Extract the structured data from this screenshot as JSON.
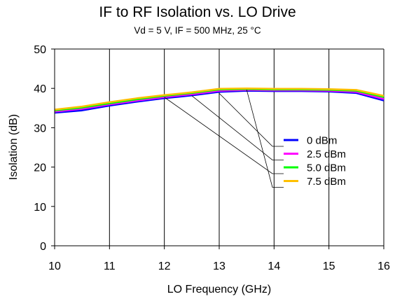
{
  "chart_data": {
    "type": "line",
    "title": "IF to RF Isolation vs. LO Drive",
    "subtitle": "Vd = 5 V, IF = 500 MHz, 25 °C",
    "xlabel": "LO Frequency (GHz)",
    "ylabel": "Isolation (dB)",
    "xlim": [
      10,
      16
    ],
    "ylim": [
      0,
      50
    ],
    "xticks": [
      10,
      11,
      12,
      13,
      14,
      15,
      16
    ],
    "yticks": [
      0,
      10,
      20,
      30,
      40,
      50
    ],
    "grid": "vertical",
    "legend_position": "center-right",
    "x": [
      10,
      10.5,
      11,
      11.5,
      12,
      12.5,
      13,
      13.5,
      14,
      14.5,
      15,
      15.5,
      16
    ],
    "series": [
      {
        "name": "0 dBm",
        "color": "#0000ff",
        "values": [
          33.8,
          34.4,
          35.6,
          36.6,
          37.5,
          38.2,
          39.1,
          39.4,
          39.3,
          39.3,
          39.2,
          38.8,
          36.9
        ]
      },
      {
        "name": "2.5 dBm",
        "color": "#ff00ff",
        "values": [
          34.1,
          34.8,
          35.9,
          36.9,
          37.8,
          38.5,
          39.4,
          39.6,
          39.5,
          39.5,
          39.4,
          39.1,
          37.3
        ]
      },
      {
        "name": "5.0 dBm",
        "color": "#00ff00",
        "values": [
          34.4,
          35.1,
          36.2,
          37.2,
          38.1,
          38.8,
          39.7,
          39.8,
          39.7,
          39.7,
          39.6,
          39.4,
          37.8
        ]
      },
      {
        "name": "7.5 dBm",
        "color": "#ffc000",
        "values": [
          34.6,
          35.4,
          36.5,
          37.5,
          38.3,
          39.0,
          39.9,
          40.0,
          39.9,
          39.9,
          39.8,
          39.6,
          38.1
        ]
      }
    ]
  }
}
